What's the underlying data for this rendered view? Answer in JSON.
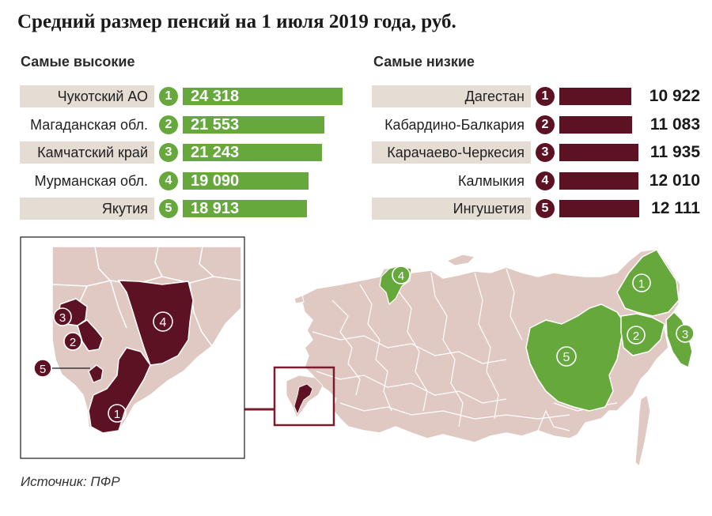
{
  "title": "Средний размер пенсий на 1 июля 2019 года, руб.",
  "source": "Источник: ПФР",
  "colors": {
    "high": "#66a83c",
    "low": "#5d1223",
    "label_bg": "#e5dcd4",
    "map_region": "#e1c9c3",
    "map_border": "#ffffff"
  },
  "chart_data": [
    {
      "type": "bar",
      "orientation": "horizontal",
      "title": "Самые высокие",
      "categories": [
        "Чукотский АО",
        "Магаданская обл.",
        "Камчатский край",
        "Мурманская обл.",
        "Якутия"
      ],
      "ranks": [
        "1",
        "2",
        "3",
        "4",
        "5"
      ],
      "values": [
        24318,
        21553,
        21243,
        19090,
        18913
      ],
      "value_labels": [
        "24 318",
        "21 553",
        "21 243",
        "19 090",
        "18 913"
      ]
    },
    {
      "type": "bar",
      "orientation": "horizontal",
      "title": "Самые низкие",
      "categories": [
        "Дагестан",
        "Кабардино-Балкария",
        "Карачаево-Черкесия",
        "Калмыкия",
        "Ингушетия"
      ],
      "ranks": [
        "1",
        "2",
        "3",
        "4",
        "5"
      ],
      "values": [
        10922,
        11083,
        11935,
        12010,
        12111
      ],
      "value_labels": [
        "10 922",
        "11 083",
        "11 935",
        "12 010",
        "12 111"
      ]
    }
  ],
  "map": {
    "high_markers": [
      "1",
      "2",
      "3",
      "4",
      "5"
    ],
    "inset_markers": [
      "1",
      "2",
      "3",
      "4",
      "5"
    ]
  }
}
